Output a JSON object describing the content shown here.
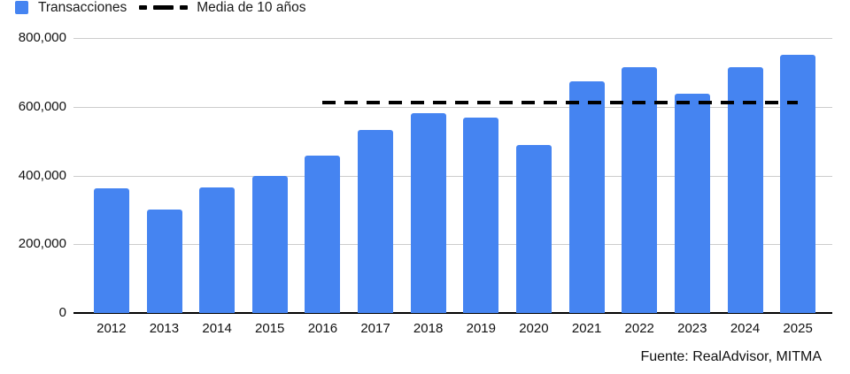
{
  "legend": {
    "series_label": "Transacciones",
    "average_label": "Media de 10 años"
  },
  "footer": {
    "source": "Fuente: RealAdvisor, MITMA"
  },
  "colors": {
    "bar": "#4584F1",
    "grid": "#cccccc",
    "baseline": "#000000",
    "average_line": "#000000",
    "text": "#111111"
  },
  "chart_data": {
    "type": "bar",
    "title": "",
    "xlabel": "",
    "ylabel": "",
    "categories": [
      "2012",
      "2013",
      "2014",
      "2015",
      "2016",
      "2017",
      "2018",
      "2019",
      "2020",
      "2021",
      "2022",
      "2023",
      "2024",
      "2025"
    ],
    "series": [
      {
        "name": "Transacciones",
        "values": [
          364000,
          300000,
          366000,
          400000,
          458000,
          532000,
          582000,
          568000,
          490000,
          674000,
          716000,
          638000,
          715000,
          750000
        ]
      }
    ],
    "average_line": {
      "label": "Media de 10 años",
      "value": 612300,
      "span_categories": [
        "2016",
        "2025"
      ],
      "style": "dashed",
      "color": "#000000"
    },
    "ylim": [
      0,
      800000
    ],
    "ytick_interval": 200000,
    "ytick_labels": [
      "0",
      "200,000",
      "400,000",
      "600,000",
      "800,000"
    ],
    "grid": true,
    "legend_position": "top-left",
    "source_note": "Fuente: RealAdvisor, MITMA"
  }
}
